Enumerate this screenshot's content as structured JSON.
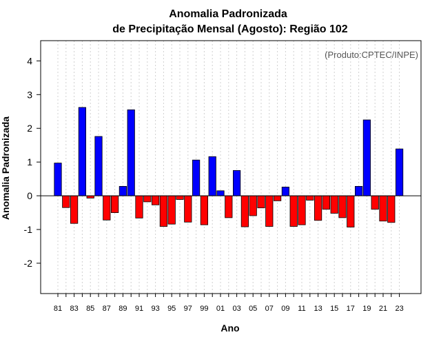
{
  "chart_data": {
    "type": "bar",
    "title": "Anomalia Padronizada",
    "subtitle": "de Precipitação Mensal (Agosto): Região 102",
    "xlabel": "Ano",
    "ylabel": "Anomalia Padronizada",
    "annotation": "(Produto:CPTEC/INPE)",
    "ylim": [
      -2.9,
      4.6
    ],
    "yticks": [
      -2,
      -1,
      0,
      1,
      2,
      3,
      4
    ],
    "grid": "vertical dotted",
    "positive_color": "#0000ff",
    "negative_color": "#ff0000",
    "categories": [
      "81",
      "82",
      "83",
      "84",
      "85",
      "86",
      "87",
      "88",
      "89",
      "90",
      "91",
      "92",
      "93",
      "94",
      "95",
      "96",
      "97",
      "98",
      "99",
      "00",
      "01",
      "02",
      "03",
      "04",
      "05",
      "06",
      "07",
      "08",
      "09",
      "10",
      "11",
      "12",
      "13",
      "14",
      "15",
      "16",
      "17",
      "18",
      "19",
      "20",
      "21",
      "22",
      "23"
    ],
    "tick_labels": [
      "81",
      "83",
      "85",
      "87",
      "89",
      "91",
      "93",
      "95",
      "97",
      "99",
      "01",
      "03",
      "05",
      "07",
      "09",
      "11",
      "13",
      "15",
      "17",
      "19",
      "21",
      "23"
    ],
    "values": [
      0.97,
      -0.35,
      -0.82,
      2.62,
      -0.07,
      1.76,
      -0.72,
      -0.5,
      0.28,
      2.55,
      -0.66,
      -0.18,
      -0.27,
      -0.91,
      -0.84,
      -0.11,
      -0.78,
      1.06,
      -0.86,
      1.16,
      0.15,
      -0.65,
      0.75,
      -0.92,
      -0.59,
      -0.36,
      -0.91,
      -0.15,
      0.26,
      -0.91,
      -0.86,
      -0.13,
      -0.73,
      -0.4,
      -0.52,
      -0.65,
      -0.93,
      0.28,
      2.25,
      -0.4,
      -0.75,
      -0.79,
      1.39
    ]
  }
}
